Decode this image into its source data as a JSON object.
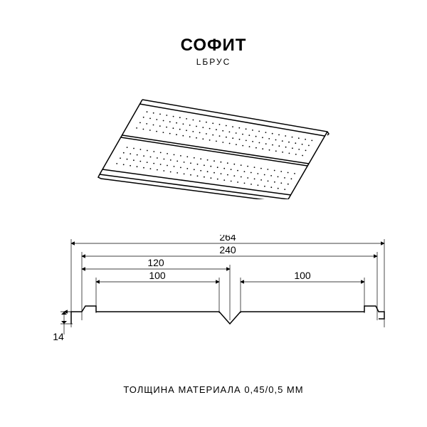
{
  "header": {
    "title": "СОФИТ",
    "subtitle": "LБРУС"
  },
  "iso_view": {
    "type": "diagram",
    "description": "isometric perforated soffit panel",
    "panel_fill": "#ffffff",
    "line_color": "#000000",
    "line_width": 1.5,
    "perforation": {
      "dot_color": "#000000",
      "dot_radius": 0.9,
      "bands": 2,
      "rows_per_band": 4,
      "cols": 26
    },
    "geometry_note": "two coplanar perforated bands with center ridge and edge flanges, drawn in parallel projection"
  },
  "cross_section": {
    "type": "engineering-profile",
    "line_color": "#000000",
    "dim_line_width": 0.7,
    "profile_line_width": 1.5,
    "dimensions": {
      "overall_width": 264,
      "cover_width": 240,
      "half_width": 120,
      "plank_width": 100,
      "second_plank_width": 100,
      "height": 14
    },
    "dim_font_size": 14,
    "dim_text_color": "#000000",
    "arrow_size": 5,
    "profile_path_note": "left hook, flat 100, V-ridge, flat 100, right hook; height ~14"
  },
  "footer": {
    "text": "ТОЛЩИНА МАТЕРИАЛА 0,45/0,5 ММ"
  },
  "colors": {
    "background": "#ffffff",
    "stroke": "#000000",
    "text": "#000000"
  }
}
